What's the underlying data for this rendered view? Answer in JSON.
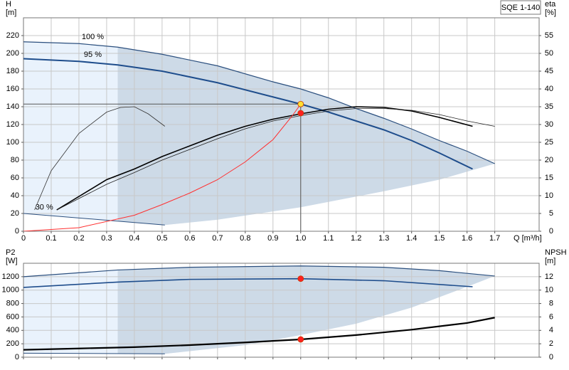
{
  "chart_data": [
    {
      "type": "line",
      "title": "SQE 1-140",
      "ylabel": "H",
      "yunit": "[m]",
      "y2label": "eta",
      "y2unit": "[%]",
      "xlabel": "Q [m³/h]",
      "xlim": [
        0,
        1.86
      ],
      "xticks": [
        0,
        0.1,
        0.2,
        0.3,
        0.4,
        0.5,
        0.6,
        0.7,
        0.8,
        0.9,
        {
          "value": 1,
          "label": "1.0"
        },
        1.1,
        1.2,
        1.3,
        1.4,
        1.5,
        1.6,
        1.7
      ],
      "xtick_labels": true,
      "ylim": [
        0,
        240
      ],
      "yticks": [
        0,
        20,
        40,
        60,
        80,
        100,
        120,
        140,
        160,
        180,
        200,
        220
      ],
      "y2lim": [
        0,
        60
      ],
      "y2ticks": [
        0,
        5,
        10,
        15,
        20,
        25,
        30,
        35,
        40,
        45,
        50,
        55
      ],
      "grid": true,
      "min_flow": 0.34,
      "series": [
        {
          "name": "100 %",
          "color": "#2b4f7e",
          "width": 1.2,
          "x": [
            0,
            0.2,
            0.34,
            0.5,
            0.7,
            0.9,
            1.0,
            1.1,
            1.2,
            1.3,
            1.4,
            1.5,
            1.6,
            1.7
          ],
          "values": [
            213,
            211,
            207,
            199,
            186,
            168,
            160,
            150,
            138,
            127,
            115,
            102,
            90,
            76
          ]
        },
        {
          "name": "95 %",
          "color": "#1e4d8c",
          "width": 2,
          "x": [
            0,
            0.2,
            0.34,
            0.5,
            0.7,
            0.9,
            1.0,
            1.1,
            1.2,
            1.3,
            1.4,
            1.5,
            1.62
          ],
          "values": [
            194,
            191,
            187,
            180,
            167,
            151,
            143,
            134,
            124,
            114,
            102,
            88,
            70
          ]
        },
        {
          "name": "30 %",
          "color": "#2b4f7e",
          "width": 1,
          "x": [
            0,
            0.51
          ],
          "values": [
            20,
            7
          ]
        },
        {
          "axis": "y2",
          "color": "#000000",
          "width": 1.6,
          "x": [
            0.12,
            0.3,
            0.4,
            0.5,
            0.6,
            0.7,
            0.8,
            0.9,
            1.0,
            1.1,
            1.2,
            1.3,
            1.4,
            1.5,
            1.62
          ],
          "values": [
            6,
            14.5,
            17.5,
            21,
            24,
            27,
            29.5,
            31.5,
            33,
            34.3,
            35,
            34.8,
            33.8,
            32,
            29.5
          ]
        },
        {
          "axis": "y2",
          "color": "#222222",
          "width": 0.8,
          "x": [
            0.12,
            0.3,
            0.4,
            0.5,
            0.6,
            0.7,
            0.8,
            0.9,
            1.0,
            1.1,
            1.2,
            1.3,
            1.4,
            1.5,
            1.6,
            1.7
          ],
          "values": [
            6,
            13.2,
            16.5,
            20,
            23,
            26,
            28.8,
            31,
            32.5,
            33.8,
            34.5,
            34.5,
            34,
            32.8,
            31,
            29.5
          ]
        },
        {
          "axis": "y2",
          "color": "#333333",
          "width": 0.8,
          "x": [
            0.04,
            0.1,
            0.2,
            0.3,
            0.35,
            0.4,
            0.45,
            0.51
          ],
          "values": [
            6,
            17,
            27.5,
            33.5,
            34.8,
            35,
            33,
            29.5
          ]
        },
        {
          "color": "#ff3030",
          "width": 1,
          "x": [
            0,
            0.2,
            0.4,
            0.5,
            0.6,
            0.7,
            0.8,
            0.9,
            0.97,
            1.0
          ],
          "values": [
            0,
            4,
            18,
            30,
            43,
            58,
            78,
            103,
            130,
            143
          ]
        }
      ],
      "area_lower": {
        "x": [
          0.51,
          0.7,
          1.0,
          1.3,
          1.5,
          1.7
        ],
        "values": [
          7,
          13,
          27,
          45,
          58,
          76
        ]
      },
      "points": [
        {
          "x": 1.0,
          "y": 143,
          "color": "#ffe033"
        },
        {
          "x": 1.0,
          "y": 33.2,
          "axis": "y2",
          "color": "#ff2020"
        }
      ]
    },
    {
      "type": "line",
      "ylabel": "P2",
      "yunit": "[W]",
      "y2label": "NPSH",
      "y2unit": "[m]",
      "xlim": [
        0,
        1.86
      ],
      "xticks": [
        0,
        0.1,
        0.2,
        0.3,
        0.4,
        0.5,
        0.6,
        0.7,
        0.8,
        0.9,
        1,
        1.1,
        1.2,
        1.3,
        1.4,
        1.5,
        1.6,
        1.7
      ],
      "xtick_labels": false,
      "ylim": [
        0,
        1400
      ],
      "yticks": [
        0,
        200,
        400,
        600,
        800,
        1000,
        1200
      ],
      "y2lim": [
        0,
        14
      ],
      "y2ticks": [
        0,
        2,
        4,
        6,
        8,
        10,
        12
      ],
      "grid": true,
      "min_flow": 0.34,
      "series": [
        {
          "color": "#2b4f7e",
          "width": 1.2,
          "x": [
            0,
            0.34,
            0.6,
            1.0,
            1.3,
            1.5,
            1.7
          ],
          "values": [
            1200,
            1300,
            1340,
            1360,
            1340,
            1290,
            1210
          ]
        },
        {
          "color": "#1e4d8c",
          "width": 1.6,
          "x": [
            0,
            0.34,
            0.6,
            1.0,
            1.3,
            1.62
          ],
          "values": [
            1040,
            1120,
            1160,
            1170,
            1140,
            1050
          ]
        },
        {
          "color": "#2b4f7e",
          "width": 1,
          "x": [
            0,
            0.51
          ],
          "values": [
            60,
            50
          ]
        },
        {
          "axis": "y2",
          "color": "#000000",
          "width": 2.2,
          "x": [
            0,
            0.2,
            0.4,
            0.6,
            0.8,
            1.0,
            1.2,
            1.4,
            1.6,
            1.7
          ],
          "values": [
            1.1,
            1.3,
            1.5,
            1.8,
            2.2,
            2.65,
            3.3,
            4.1,
            5.1,
            5.9
          ]
        }
      ],
      "area_lower": {
        "x": [
          0.51,
          0.8,
          1.0,
          1.2,
          1.4,
          1.6,
          1.7
        ],
        "values": [
          50,
          180,
          330,
          500,
          740,
          1050,
          1210
        ]
      },
      "points": [
        {
          "x": 1.0,
          "y": 1170,
          "color": "#ff2020"
        },
        {
          "x": 1.0,
          "y": 2.65,
          "axis": "y2",
          "color": "#ff2020"
        }
      ]
    }
  ]
}
